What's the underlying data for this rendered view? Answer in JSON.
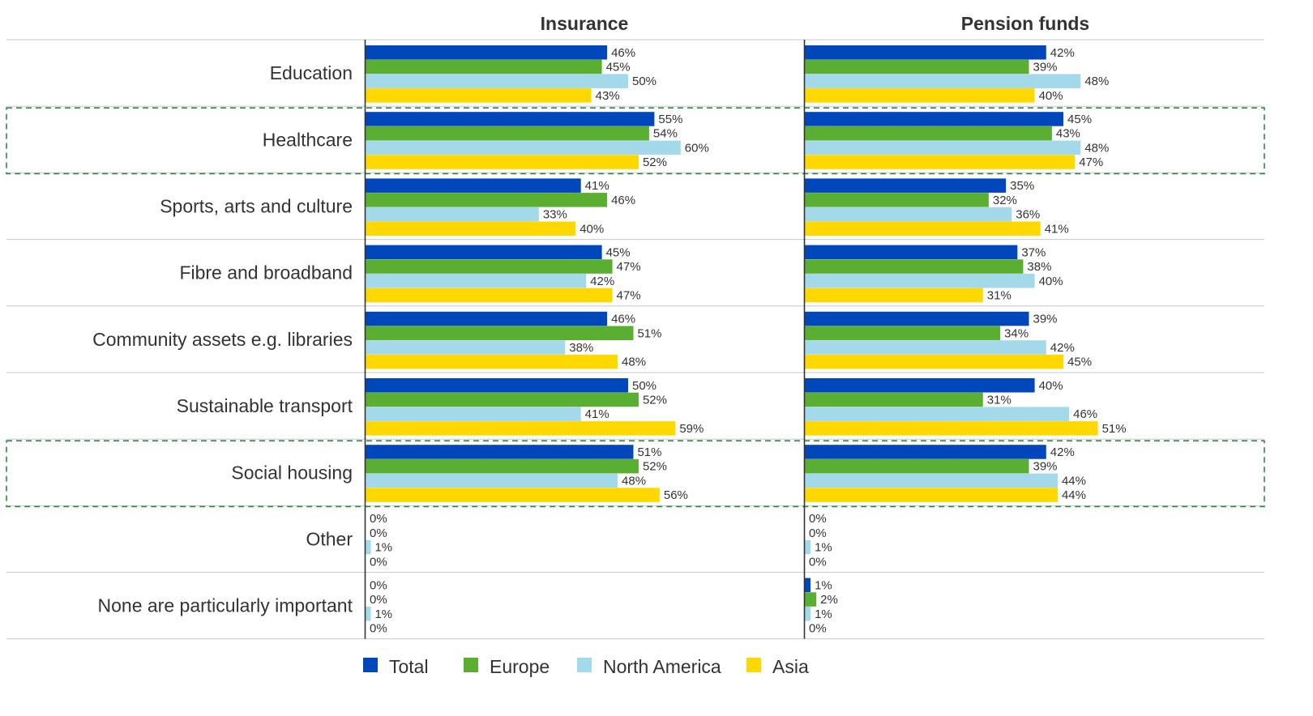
{
  "chart_data": {
    "type": "bar",
    "orientation": "horizontal",
    "panels": [
      "Insurance",
      "Pension funds"
    ],
    "categories": [
      "Education",
      "Healthcare",
      "Sports, arts and culture",
      "Fibre and broadband",
      "Community assets e.g. libraries",
      "Sustainable transport",
      "Social housing",
      "Other",
      "None are particularly important"
    ],
    "highlighted_categories": [
      "Healthcare",
      "Social housing"
    ],
    "series": [
      {
        "name": "Total",
        "color": "#0047bb"
      },
      {
        "name": "Europe",
        "color": "#5aaf32"
      },
      {
        "name": "North America",
        "color": "#a3d9e8"
      },
      {
        "name": "Asia",
        "color": "#ffd800"
      }
    ],
    "values": {
      "Insurance": {
        "Total": [
          46,
          55,
          41,
          45,
          46,
          50,
          51,
          0,
          0
        ],
        "Europe": [
          45,
          54,
          46,
          47,
          51,
          52,
          52,
          0,
          0
        ],
        "North America": [
          50,
          60,
          33,
          42,
          38,
          41,
          48,
          1,
          1
        ],
        "Asia": [
          43,
          52,
          40,
          47,
          48,
          59,
          56,
          0,
          0
        ]
      },
      "Pension funds": {
        "Total": [
          42,
          45,
          35,
          37,
          39,
          40,
          42,
          0,
          1
        ],
        "Europe": [
          39,
          43,
          32,
          38,
          34,
          31,
          39,
          0,
          2
        ],
        "North America": [
          48,
          48,
          36,
          40,
          42,
          46,
          44,
          1,
          1
        ],
        "Asia": [
          40,
          47,
          41,
          31,
          45,
          51,
          44,
          0,
          0
        ]
      }
    },
    "value_suffix": "%",
    "xlim": [
      0,
      100
    ],
    "grid": false,
    "legend_position": "bottom-center"
  }
}
